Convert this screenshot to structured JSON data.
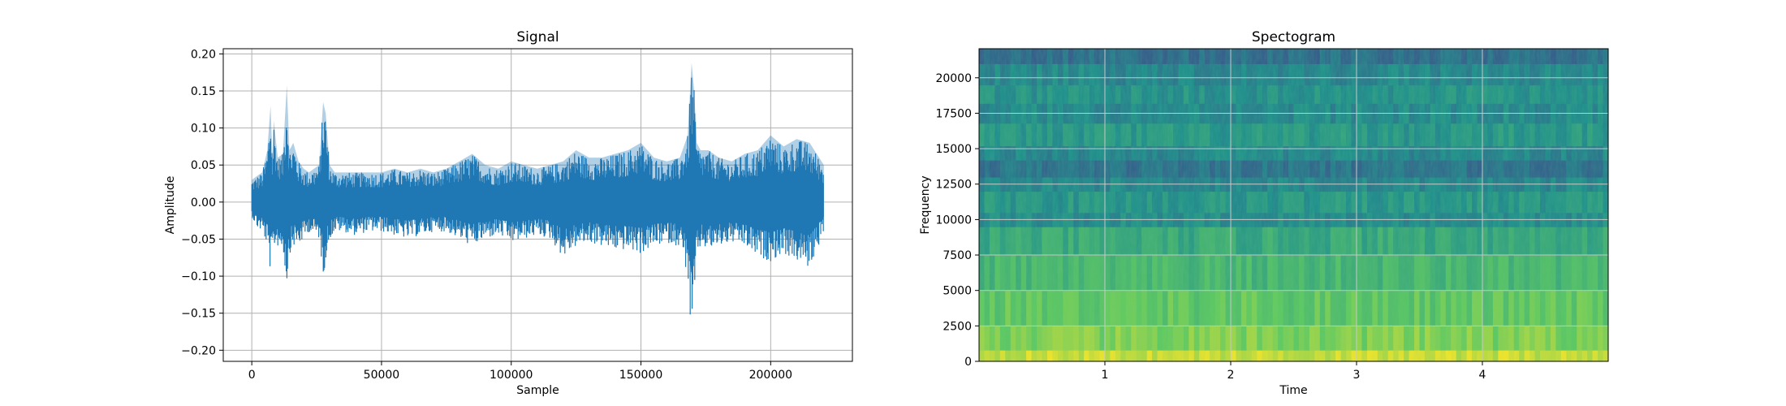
{
  "chart_data": [
    {
      "type": "line",
      "title": "Signal",
      "xlabel": "Sample",
      "ylabel": "Amplitude",
      "xlim": [
        -11000,
        231500
      ],
      "ylim": [
        -0.215,
        0.207
      ],
      "x_ticks": [
        0,
        50000,
        100000,
        150000,
        200000
      ],
      "x_tick_labels": [
        "0",
        "50000",
        "100000",
        "150000",
        "200000"
      ],
      "y_ticks": [
        -0.2,
        -0.15,
        -0.1,
        -0.05,
        0.0,
        0.05,
        0.1,
        0.15,
        0.2
      ],
      "y_tick_labels": [
        "−0.20",
        "−0.15",
        "−0.10",
        "−0.05",
        "0.00",
        "0.05",
        "0.10",
        "0.15",
        "0.20"
      ],
      "grid": true,
      "line_color": "#1f77b4",
      "series": [
        {
          "x": [
            0,
            2000,
            4000,
            6000,
            7200,
            8000,
            8500,
            10000,
            12000,
            13500,
            14500,
            16000,
            18000,
            20000,
            22000,
            24000,
            26000,
            27500,
            28500,
            30000,
            32000,
            35000,
            40000,
            45000,
            50000,
            55000,
            60000,
            65000,
            70000,
            75000,
            80000,
            85000,
            90000,
            95000,
            100000,
            105000,
            110000,
            115000,
            120000,
            125000,
            130000,
            135000,
            140000,
            145000,
            150000,
            155000,
            160000,
            165000,
            168000,
            169500,
            170500,
            171500,
            173000,
            176000,
            180000,
            185000,
            190000,
            195000,
            200000,
            205000,
            210000,
            215000,
            220500
          ],
          "max": [
            0.03,
            0.035,
            0.04,
            0.07,
            0.13,
            0.06,
            0.11,
            0.06,
            0.065,
            0.158,
            0.07,
            0.08,
            0.055,
            0.045,
            0.04,
            0.045,
            0.05,
            0.135,
            0.12,
            0.05,
            0.04,
            0.04,
            0.04,
            0.04,
            0.04,
            0.045,
            0.04,
            0.045,
            0.04,
            0.045,
            0.055,
            0.065,
            0.05,
            0.045,
            0.055,
            0.05,
            0.045,
            0.05,
            0.055,
            0.07,
            0.06,
            0.06,
            0.065,
            0.07,
            0.08,
            0.06,
            0.055,
            0.06,
            0.09,
            0.188,
            0.15,
            0.08,
            0.07,
            0.07,
            0.06,
            0.055,
            0.065,
            0.07,
            0.09,
            0.075,
            0.085,
            0.08,
            0.05
          ],
          "min": [
            -0.02,
            -0.035,
            -0.04,
            -0.06,
            -0.095,
            -0.08,
            -0.06,
            -0.06,
            -0.065,
            -0.112,
            -0.07,
            -0.06,
            -0.06,
            -0.05,
            -0.04,
            -0.045,
            -0.05,
            -0.1,
            -0.08,
            -0.05,
            -0.04,
            -0.04,
            -0.045,
            -0.04,
            -0.04,
            -0.045,
            -0.05,
            -0.045,
            -0.04,
            -0.04,
            -0.05,
            -0.06,
            -0.05,
            -0.045,
            -0.055,
            -0.05,
            -0.045,
            -0.05,
            -0.075,
            -0.06,
            -0.055,
            -0.06,
            -0.065,
            -0.065,
            -0.07,
            -0.06,
            -0.055,
            -0.06,
            -0.1,
            -0.195,
            -0.14,
            -0.08,
            -0.06,
            -0.065,
            -0.06,
            -0.055,
            -0.06,
            -0.075,
            -0.08,
            -0.07,
            -0.08,
            -0.09,
            -0.04
          ]
        }
      ]
    },
    {
      "type": "heatmap",
      "title": "Spectogram",
      "xlabel": "Time",
      "ylabel": "Frequency",
      "xlim": [
        0.0,
        5.0
      ],
      "ylim": [
        0,
        22050
      ],
      "x_ticks": [
        1,
        2,
        3,
        4
      ],
      "x_tick_labels": [
        "1",
        "2",
        "3",
        "4"
      ],
      "y_ticks": [
        0,
        2500,
        5000,
        7500,
        10000,
        12500,
        15000,
        17500,
        20000
      ],
      "y_tick_labels": [
        "0",
        "2500",
        "5000",
        "7500",
        "10000",
        "12500",
        "15000",
        "17500",
        "20000"
      ],
      "grid": true,
      "colormap": "viridis",
      "frequency_bands": [
        {
          "from": 0,
          "to": 800,
          "level": 0.92
        },
        {
          "from": 800,
          "to": 2500,
          "level": 0.8
        },
        {
          "from": 2500,
          "to": 5000,
          "level": 0.74
        },
        {
          "from": 5000,
          "to": 7500,
          "level": 0.66
        },
        {
          "from": 7500,
          "to": 9500,
          "level": 0.6
        },
        {
          "from": 9500,
          "to": 10500,
          "level": 0.48
        },
        {
          "from": 10500,
          "to": 12000,
          "level": 0.52
        },
        {
          "from": 12000,
          "to": 13000,
          "level": 0.46
        },
        {
          "from": 13000,
          "to": 14200,
          "level": 0.38
        },
        {
          "from": 14200,
          "to": 15200,
          "level": 0.46
        },
        {
          "from": 15200,
          "to": 16800,
          "level": 0.52
        },
        {
          "from": 16800,
          "to": 18200,
          "level": 0.47
        },
        {
          "from": 18200,
          "to": 19500,
          "level": 0.5
        },
        {
          "from": 19500,
          "to": 21000,
          "level": 0.46
        },
        {
          "from": 21000,
          "to": 22050,
          "level": 0.36
        }
      ]
    }
  ]
}
